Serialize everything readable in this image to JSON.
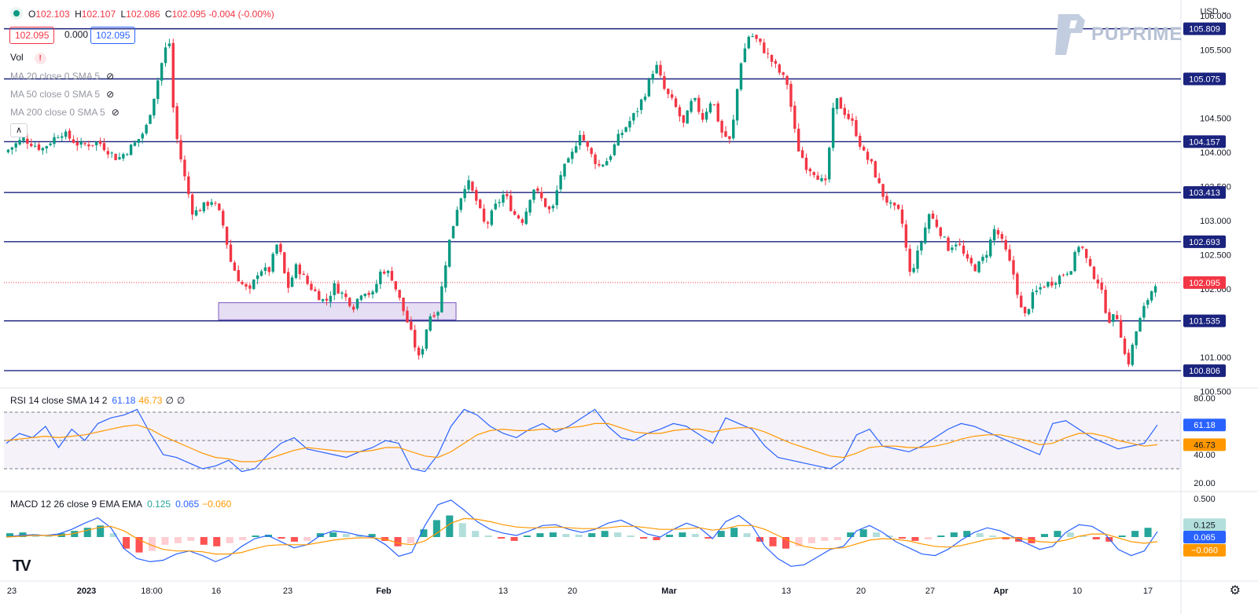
{
  "header": {
    "symbol_icon": "green-dot-icon",
    "open_label": "O",
    "open": "102.103",
    "high_label": "H",
    "high": "102.107",
    "low_label": "L",
    "low": "102.086",
    "close_label": "C",
    "close": "102.095",
    "change": "-0.004 (-0.00%)",
    "bid": "102.095",
    "spread": "0.000",
    "ask": "102.095"
  },
  "currency": "USD",
  "brand": "PUPRIME",
  "indicators": {
    "vol": "Vol",
    "ma20": "MA 20 close 0 SMA 5",
    "ma50": "MA 50 close 0 SMA 5",
    "ma200": "MA 200 close 0 SMA 5"
  },
  "rsi_legend": {
    "title": "RSI 14 close SMA 14 2",
    "rsi": "61.18",
    "sma": "46.73",
    "z1": "∅",
    "z2": "∅"
  },
  "macd_legend": {
    "title": "MACD 12 26 close 9 EMA EMA",
    "hist": "0.125",
    "macd": "0.065",
    "signal": "−0.060"
  },
  "colors": {
    "up": "#089981",
    "down": "#f23645",
    "level": "#1a237e",
    "rsi": "#2962ff",
    "rsi_sma": "#ff9800",
    "macd": "#2962ff",
    "signal": "#ff9800",
    "range_box": "#d1c4e9",
    "rsi_band": "#7e57c2"
  },
  "chart_data": [
    {
      "type": "candlestick",
      "title": "",
      "y_axis_ticks": [
        "106.000",
        "105.500",
        "104.500",
        "104.000",
        "103.500",
        "103.000",
        "102.500",
        "102.000",
        "101.000",
        "100.500"
      ],
      "ylim": [
        100.6,
        106.0
      ],
      "x_axis_ticks": [
        "23",
        "2023",
        "18:00",
        "16",
        "23",
        "Feb",
        "13",
        "20",
        "Mar",
        "13",
        "20",
        "27",
        "Apr",
        "10",
        "17"
      ],
      "horizontal_levels": [
        "105.809",
        "105.075",
        "104.157",
        "103.413",
        "102.693",
        "101.535",
        "100.806"
      ],
      "current_price": "102.095",
      "range_box": {
        "from": 101.55,
        "to": 101.8
      },
      "close_path": [
        [
          0,
          104.0
        ],
        [
          2,
          104.2
        ],
        [
          4,
          104.05
        ],
        [
          6,
          104.3
        ],
        [
          8,
          104.1
        ],
        [
          10,
          104.15
        ],
        [
          12,
          103.9
        ],
        [
          14,
          104.15
        ],
        [
          15,
          104.35
        ],
        [
          16,
          104.9
        ],
        [
          17,
          105.5
        ],
        [
          17.5,
          105.6
        ],
        [
          18,
          104.4
        ],
        [
          19,
          103.7
        ],
        [
          20,
          103.1
        ],
        [
          21,
          103.2
        ],
        [
          22,
          103.3
        ],
        [
          23,
          103.05
        ],
        [
          24,
          102.4
        ],
        [
          25,
          102.1
        ],
        [
          26,
          101.95
        ],
        [
          27,
          102.3
        ],
        [
          28,
          102.25
        ],
        [
          29,
          102.7
        ],
        [
          30,
          102.0
        ],
        [
          31,
          102.35
        ],
        [
          32,
          102.1
        ],
        [
          33,
          101.95
        ],
        [
          34,
          101.8
        ],
        [
          35,
          102.05
        ],
        [
          36,
          101.9
        ],
        [
          37,
          101.75
        ],
        [
          38,
          102.0
        ],
        [
          39,
          101.9
        ],
        [
          40,
          102.3
        ],
        [
          41,
          102.2
        ],
        [
          42,
          101.8
        ],
        [
          43,
          101.4
        ],
        [
          44,
          100.95
        ],
        [
          45,
          101.6
        ],
        [
          46,
          101.7
        ],
        [
          47,
          102.6
        ],
        [
          48,
          103.2
        ],
        [
          49,
          103.6
        ],
        [
          50,
          103.3
        ],
        [
          51,
          102.9
        ],
        [
          52,
          103.2
        ],
        [
          53,
          103.4
        ],
        [
          54,
          103.1
        ],
        [
          55,
          103.0
        ],
        [
          56,
          103.5
        ],
        [
          57,
          103.3
        ],
        [
          58,
          103.1
        ],
        [
          59,
          103.7
        ],
        [
          60,
          103.9
        ],
        [
          61,
          104.3
        ],
        [
          62,
          104.0
        ],
        [
          63,
          103.8
        ],
        [
          64,
          103.9
        ],
        [
          65,
          104.2
        ],
        [
          66,
          104.4
        ],
        [
          67,
          104.6
        ],
        [
          68,
          104.9
        ],
        [
          69,
          105.3
        ],
        [
          70,
          104.9
        ],
        [
          71,
          104.7
        ],
        [
          72,
          104.4
        ],
        [
          73,
          104.8
        ],
        [
          74,
          104.5
        ],
        [
          75,
          104.8
        ],
        [
          76,
          104.3
        ],
        [
          77,
          104.15
        ],
        [
          78,
          105.3
        ],
        [
          79,
          105.75
        ],
        [
          80,
          105.6
        ],
        [
          81,
          105.4
        ],
        [
          82,
          105.2
        ],
        [
          83,
          105.0
        ],
        [
          84,
          104.1
        ],
        [
          85,
          103.8
        ],
        [
          86,
          103.7
        ],
        [
          87,
          103.5
        ],
        [
          88,
          104.8
        ],
        [
          89,
          104.6
        ],
        [
          90,
          104.4
        ],
        [
          91,
          104.0
        ],
        [
          92,
          103.8
        ],
        [
          93,
          103.4
        ],
        [
          94,
          103.2
        ],
        [
          95,
          103.1
        ],
        [
          96,
          102.2
        ],
        [
          97,
          102.6
        ],
        [
          98,
          103.1
        ],
        [
          99,
          102.9
        ],
        [
          100,
          102.6
        ],
        [
          101,
          102.7
        ],
        [
          102,
          102.4
        ],
        [
          103,
          102.3
        ],
        [
          104,
          102.5
        ],
        [
          105,
          102.9
        ],
        [
          106,
          102.6
        ],
        [
          107,
          102.2
        ],
        [
          108,
          101.55
        ],
        [
          109,
          101.9
        ],
        [
          110,
          102.05
        ],
        [
          111,
          102.1
        ],
        [
          112,
          102.2
        ],
        [
          113,
          102.3
        ],
        [
          114,
          102.7
        ],
        [
          115,
          102.3
        ],
        [
          116,
          102.1
        ],
        [
          117,
          101.55
        ],
        [
          118,
          101.6
        ],
        [
          119,
          100.85
        ],
        [
          120,
          101.4
        ],
        [
          121,
          101.8
        ],
        [
          122,
          102.1
        ]
      ]
    },
    {
      "type": "line",
      "title": "",
      "y_axis_ticks": [
        "80.00",
        "40.00",
        "20.00"
      ],
      "ylim": [
        15,
        85
      ],
      "band": [
        30,
        70
      ],
      "midline": 50,
      "series": [
        {
          "values": [
            48,
            55,
            52,
            60,
            45,
            58,
            50,
            62,
            66,
            68,
            72,
            55,
            40,
            38,
            34,
            30,
            32,
            36,
            28,
            30,
            40,
            48,
            52,
            44,
            42,
            40,
            38,
            42,
            45,
            50,
            48,
            30,
            28,
            40,
            60,
            72,
            68,
            60,
            55,
            52,
            58,
            62,
            56,
            60,
            66,
            72,
            60,
            52,
            50,
            55,
            58,
            62,
            60,
            54,
            48,
            66,
            62,
            58,
            46,
            38,
            36,
            34,
            32,
            30,
            36,
            54,
            58,
            46,
            44,
            42,
            46,
            52,
            58,
            62,
            60,
            56,
            52,
            48,
            44,
            40,
            62,
            64,
            58,
            52,
            48,
            44,
            46,
            48,
            61
          ]
        },
        {
          "values": [
            50,
            51,
            52,
            53,
            52,
            53,
            54,
            56,
            58,
            60,
            61,
            58,
            53,
            49,
            45,
            41,
            38,
            37,
            35,
            35,
            37,
            40,
            43,
            45,
            44,
            43,
            42,
            42,
            43,
            45,
            45,
            42,
            39,
            38,
            42,
            48,
            54,
            57,
            58,
            57,
            57,
            58,
            58,
            59,
            60,
            62,
            62,
            59,
            56,
            55,
            55,
            57,
            58,
            58,
            56,
            58,
            59,
            59,
            56,
            52,
            48,
            45,
            42,
            39,
            38,
            41,
            45,
            46,
            46,
            45,
            45,
            46,
            48,
            51,
            53,
            54,
            54,
            52,
            50,
            47,
            48,
            52,
            55,
            55,
            53,
            50,
            48,
            46,
            47
          ]
        }
      ]
    },
    {
      "type": "bar",
      "title": "",
      "y_axis_ticks": [
        "0.500"
      ],
      "ylim": [
        -0.55,
        0.55
      ],
      "histogram": [
        0.05,
        0.06,
        0.04,
        0.02,
        0.05,
        0.08,
        0.12,
        0.15,
        0.05,
        -0.15,
        -0.2,
        -0.18,
        -0.1,
        -0.08,
        -0.05,
        -0.1,
        -0.12,
        -0.08,
        -0.04,
        0.02,
        0.03,
        -0.02,
        -0.06,
        -0.05,
        0.05,
        0.06,
        0.04,
        0.03,
        0.04,
        -0.05,
        -0.12,
        -0.08,
        0.1,
        0.22,
        0.28,
        0.18,
        0.08,
        0.02,
        -0.02,
        -0.05,
        0.02,
        0.05,
        0.06,
        0.04,
        0.03,
        0.05,
        0.08,
        0.06,
        0.02,
        -0.02,
        -0.04,
        0.03,
        0.06,
        0.04,
        -0.02,
        0.08,
        0.12,
        0.05,
        -0.06,
        -0.12,
        -0.15,
        -0.12,
        -0.08,
        -0.05,
        -0.04,
        0.06,
        0.1,
        0.06,
        0.02,
        -0.02,
        -0.05,
        -0.03,
        0.02,
        0.06,
        0.08,
        0.05,
        0.02,
        -0.03,
        -0.06,
        -0.08,
        0.04,
        0.08,
        0.06,
        0.02,
        -0.03,
        -0.06,
        0.02,
        0.08,
        0.12
      ],
      "series": [
        {
          "values": [
            0.0,
            0.02,
            0.03,
            0.02,
            0.04,
            0.1,
            0.18,
            0.25,
            0.12,
            -0.15,
            -0.28,
            -0.32,
            -0.3,
            -0.22,
            -0.18,
            -0.24,
            -0.32,
            -0.25,
            -0.12,
            -0.02,
            0.02,
            -0.06,
            -0.14,
            -0.1,
            0.02,
            0.08,
            0.06,
            0.02,
            0.0,
            -0.1,
            -0.25,
            -0.2,
            0.15,
            0.42,
            0.48,
            0.35,
            0.2,
            0.1,
            0.05,
            0.02,
            0.08,
            0.15,
            0.16,
            0.1,
            0.06,
            0.1,
            0.18,
            0.22,
            0.14,
            0.04,
            0.0,
            0.1,
            0.18,
            0.12,
            -0.02,
            0.2,
            0.28,
            0.15,
            -0.12,
            -0.28,
            -0.38,
            -0.36,
            -0.26,
            -0.16,
            -0.12,
            0.08,
            0.15,
            0.06,
            -0.06,
            -0.14,
            -0.22,
            -0.24,
            -0.16,
            -0.04,
            0.06,
            0.12,
            0.08,
            0.0,
            -0.08,
            -0.16,
            -0.12,
            0.06,
            0.16,
            0.14,
            0.04,
            -0.16,
            -0.24,
            -0.18,
            0.07
          ]
        },
        {
          "values": [
            0.0,
            0.01,
            0.02,
            0.02,
            0.02,
            0.04,
            0.08,
            0.12,
            0.14,
            0.08,
            -0.02,
            -0.1,
            -0.16,
            -0.18,
            -0.18,
            -0.19,
            -0.22,
            -0.22,
            -0.2,
            -0.15,
            -0.11,
            -0.1,
            -0.1,
            -0.1,
            -0.07,
            -0.04,
            -0.02,
            -0.01,
            -0.01,
            -0.03,
            -0.08,
            -0.1,
            -0.05,
            0.06,
            0.18,
            0.24,
            0.23,
            0.2,
            0.16,
            0.13,
            0.12,
            0.12,
            0.13,
            0.12,
            0.11,
            0.11,
            0.12,
            0.14,
            0.14,
            0.12,
            0.1,
            0.1,
            0.11,
            0.12,
            0.09,
            0.11,
            0.15,
            0.15,
            0.1,
            0.02,
            -0.06,
            -0.12,
            -0.15,
            -0.15,
            -0.14,
            -0.09,
            -0.04,
            -0.02,
            -0.03,
            -0.05,
            -0.09,
            -0.12,
            -0.13,
            -0.11,
            -0.07,
            -0.03,
            -0.01,
            -0.01,
            -0.03,
            -0.06,
            -0.07,
            -0.04,
            0.01,
            0.04,
            0.04,
            -0.01,
            -0.06,
            -0.08,
            -0.06
          ]
        }
      ]
    }
  ],
  "x_axis": [
    "23",
    "2023",
    "18:00",
    "16",
    "23",
    "Feb",
    "13",
    "20",
    "Mar",
    "13",
    "20",
    "27",
    "Apr",
    "10",
    "17"
  ]
}
